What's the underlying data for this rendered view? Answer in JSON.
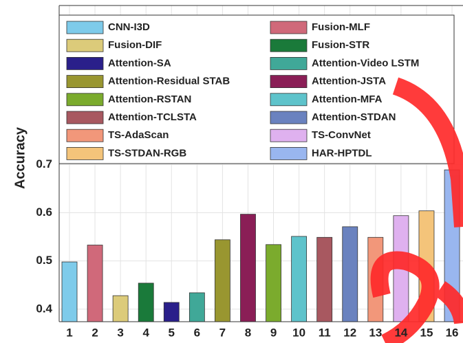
{
  "chart_data": {
    "type": "bar",
    "y_label": "Accuracy",
    "categories": [
      "1",
      "2",
      "3",
      "4",
      "5",
      "6",
      "7",
      "8",
      "9",
      "10",
      "11",
      "12",
      "13",
      "14",
      "15",
      "16"
    ],
    "values": [
      0.498,
      0.533,
      0.428,
      0.454,
      0.414,
      0.434,
      0.544,
      0.597,
      0.534,
      0.551,
      0.549,
      0.571,
      0.549,
      0.594,
      0.604,
      0.689
    ],
    "legend_labels": [
      "CNN-I3D",
      "Fusion-MLF",
      "Fusion-DIF",
      "Fusion-STR",
      "Attention-SA",
      "Attention-Video LSTM",
      "Attention-Residual STAB",
      "Attention-JSTA",
      "Attention-RSTAN",
      "Attention-MFA",
      "Attention-TCLSTA",
      "Attention-STDAN",
      "TS-AdaScan",
      "TS-ConvNet",
      "TS-STDAN-RGB",
      "HAR-HPTDL"
    ],
    "colors": [
      "#7ecbea",
      "#d0697a",
      "#dccb7a",
      "#1a7a3a",
      "#2a1f8a",
      "#40a898",
      "#999630",
      "#8a1e56",
      "#7bab2d",
      "#5ec3cb",
      "#a85860",
      "#6a82bf",
      "#f2977a",
      "#dfb1ef",
      "#f4c47a",
      "#99b6ef"
    ],
    "ylim": [
      0.374,
      1.03
    ],
    "yticks": [
      0.4,
      0.5,
      0.6,
      0.7
    ],
    "grid": true
  }
}
